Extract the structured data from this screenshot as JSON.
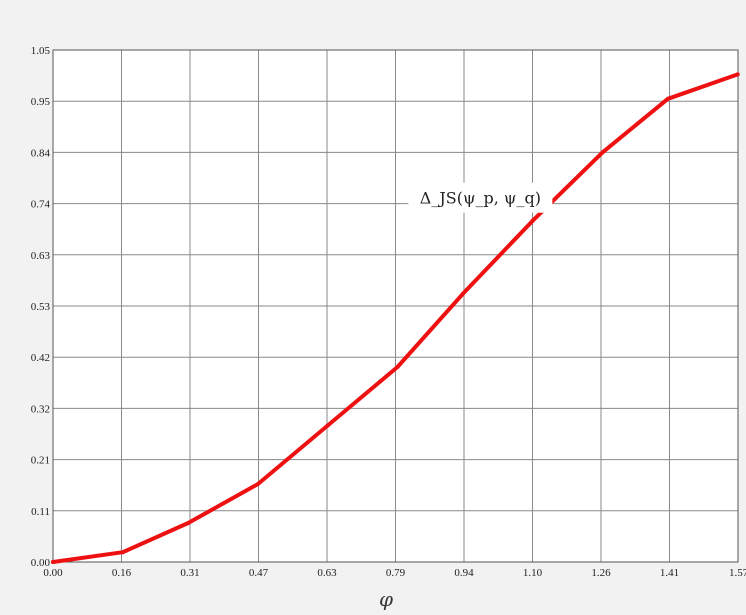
{
  "chart_data": {
    "type": "line",
    "title": "",
    "xlabel": "φ",
    "ylabel": "",
    "xlim": [
      0,
      1.5708
    ],
    "ylim": [
      0,
      1.05
    ],
    "grid": true,
    "x_ticks": [
      "0.00",
      "0.16",
      "0.31",
      "0.47",
      "0.63",
      "0.79",
      "0.94",
      "1.10",
      "1.26",
      "1.41",
      "1.57"
    ],
    "y_ticks": [
      "0.00",
      "0.11",
      "0.21",
      "0.32",
      "0.42",
      "0.53",
      "0.63",
      "0.74",
      "0.84",
      "0.95",
      "1.05"
    ],
    "annotation": {
      "text": "Δ_JS(ψ_p, ψ_q)",
      "x": 0.98,
      "y": 0.745
    },
    "series": [
      {
        "color": "#ee1111",
        "x": [
          0.0,
          0.16,
          0.31,
          0.47,
          0.63,
          0.79,
          0.94,
          1.1,
          1.26,
          1.41,
          1.57
        ],
        "y": [
          0.0,
          0.02,
          0.08,
          0.16,
          0.28,
          0.4,
          0.55,
          0.7,
          0.84,
          0.95,
          1.0
        ]
      }
    ]
  }
}
